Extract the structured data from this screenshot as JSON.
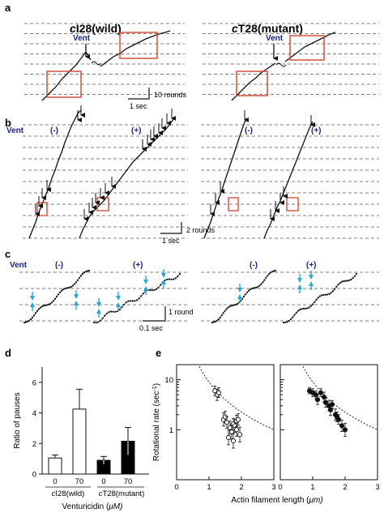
{
  "panels": {
    "a": {
      "label": "a",
      "left_title_prefix": "c",
      "left_title": "I28(wild)",
      "right_title_prefix": "c",
      "right_title": "T28(mutant)",
      "vent_label": "Vent",
      "scale_y": "10 rounds",
      "scale_x": "1 sec"
    },
    "b": {
      "label": "b",
      "vent_label": "Vent",
      "minus_label": "(-)",
      "plus_label": "(+)",
      "scale_y": "2 rounds",
      "scale_x": "1 sec"
    },
    "c": {
      "label": "c",
      "vent_label": "Vent",
      "minus_label": "(-)",
      "plus_label": "(+)",
      "scale_y": "1 round",
      "scale_x": "0.1 sec"
    },
    "d": {
      "label": "d"
    },
    "e": {
      "label": "e"
    }
  },
  "colors": {
    "box": "#d0452c",
    "vent_text": "#1a237e",
    "pause_arrow": "#29a8d8",
    "grid": "#555555"
  },
  "chart_data": [
    {
      "type": "bar",
      "ylabel": "Ratio of pauses",
      "xlabel": "Venturicidin (μM)",
      "xlabel_text": "Venturicidin (",
      "xlabel_unit": "μM)",
      "group_labels": [
        "cI28(wild)",
        "cT28(mutant)"
      ],
      "group_prefix": "c",
      "group_names": [
        "I28(wild)",
        "T28(mutant)"
      ],
      "categories": [
        "0",
        "70",
        "0",
        "70"
      ],
      "values": [
        1.05,
        4.25,
        0.9,
        2.15
      ],
      "errors": [
        0.2,
        1.3,
        0.25,
        0.9
      ],
      "fills": [
        "#ffffff",
        "#ffffff",
        "#000000",
        "#000000"
      ],
      "ylim": [
        0,
        7
      ],
      "yticks": [
        "0",
        "2",
        "4",
        "6"
      ]
    },
    {
      "type": "scatter",
      "ylabel": "Rotational rate (sec",
      "ylabel_sup": "-1",
      "ylabel_end": ")",
      "xlabel": "Actin filament length (μm)",
      "xlabel_text": "Actin filament length (",
      "xlabel_unit": "μm)",
      "xlim": [
        0,
        3
      ],
      "ylim_log": [
        0.1,
        20
      ],
      "xticks": [
        "0",
        "1",
        "2",
        "3"
      ],
      "yticks": [
        "1",
        "10"
      ],
      "curve": "dashed hyperbolic fit",
      "series": [
        {
          "marker": "open",
          "x": [
            1.18,
            1.25,
            1.3,
            1.45,
            1.5,
            1.55,
            1.65,
            1.7,
            1.75,
            1.8,
            1.85,
            1.9,
            1.95,
            1.6,
            1.75,
            1.85
          ],
          "y": [
            6.0,
            5.0,
            5.5,
            1.6,
            1.8,
            1.4,
            1.1,
            0.9,
            1.3,
            1.2,
            1.5,
            1.6,
            0.8,
            0.7,
            0.6,
            1.0
          ],
          "err": [
            0.25,
            0.3,
            0.25,
            0.35,
            0.3,
            0.3,
            0.35,
            0.4,
            0.3,
            0.35,
            0.3,
            0.3,
            0.4,
            0.4,
            0.4,
            0.35
          ]
        },
        {
          "marker": "filled",
          "x": [
            0.9,
            1.0,
            1.1,
            1.15,
            1.25,
            1.35,
            1.4,
            1.5,
            1.55,
            1.6,
            1.7,
            1.75,
            1.8,
            1.9,
            2.0
          ],
          "y": [
            6.0,
            5.5,
            5.0,
            4.0,
            5.5,
            4.5,
            3.5,
            3.0,
            2.5,
            3.2,
            2.0,
            1.8,
            1.6,
            1.2,
            1.0
          ],
          "err": [
            0.15,
            0.2,
            0.2,
            0.25,
            0.2,
            0.25,
            0.25,
            0.25,
            0.3,
            0.2,
            0.3,
            0.25,
            0.25,
            0.3,
            0.35
          ]
        }
      ]
    }
  ]
}
